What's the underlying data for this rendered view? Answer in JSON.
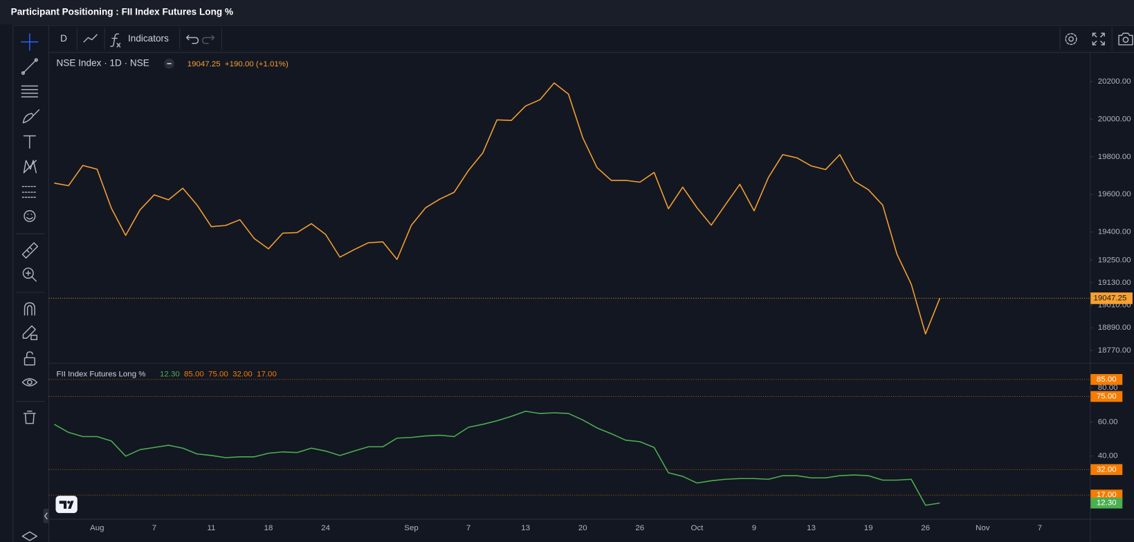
{
  "header": {
    "title": "Participant Positioning : FII Index Futures Long %"
  },
  "toolbar": {
    "interval": "D",
    "indicators": "Indicators"
  },
  "chart_data": [
    {
      "type": "line",
      "title": "NSE Index · 1D · NSE",
      "change": "+190.00 (+1.01%)",
      "categories": [
        null,
        null,
        null,
        "Aug",
        null,
        null,
        null,
        "7",
        null,
        null,
        null,
        "11",
        null,
        null,
        null,
        "18",
        null,
        null,
        null,
        "24",
        null,
        null,
        null,
        null,
        null,
        "Sep",
        null,
        null,
        null,
        "7",
        null,
        null,
        null,
        "13",
        null,
        null,
        null,
        "20",
        null,
        null,
        null,
        "26",
        null,
        null,
        null,
        "Oct",
        null,
        null,
        null,
        "9",
        null,
        null,
        null,
        "13",
        null,
        null,
        null,
        "19",
        null,
        null,
        null,
        "26",
        null,
        null,
        null,
        "Nov",
        null,
        null,
        null,
        "7",
        null,
        null,
        null
      ],
      "series": [
        {
          "color": "#f7a130",
          "values": [
            19659.9,
            19646.05,
            19753.8,
            19733.55,
            19526.55,
            19381.65,
            19517.0,
            19597.3,
            19570.85,
            19632.55,
            19543.1,
            19428.3,
            19434.55,
            19465.0,
            19365.25,
            19310.15,
            19393.6,
            19396.45,
            19444.0,
            19386.7,
            19265.8,
            19306.05,
            19342.65,
            19347.45,
            19253.8,
            19435.3,
            19528.8,
            19574.9,
            19611.05,
            19727.05,
            19819.95,
            19996.35,
            19993.2,
            20070.0,
            20103.1,
            20192.35,
            20133.3,
            19901.4,
            19742.35,
            19674.25,
            19674.55,
            19664.7,
            19716.45,
            19523.55,
            19638.3,
            19528.75,
            19436.1,
            19545.75,
            19653.5,
            19512.35,
            19689.85,
            19811.35,
            19794.0,
            19751.05,
            19731.75,
            19811.5,
            19671.1,
            19624.7,
            19542.65,
            19281.75,
            19122.15,
            18857.25,
            19047.25,
            null,
            null,
            null,
            null,
            null,
            null,
            null,
            null,
            null,
            null
          ]
        }
      ],
      "ylim": [
        18704,
        20357
      ],
      "yticks": [
        {
          "value": 20200,
          "label": "20200.00"
        },
        {
          "value": 20000,
          "label": "20000.00"
        },
        {
          "value": 19800,
          "label": "19800.00"
        },
        {
          "value": 19600,
          "label": "19600.00"
        },
        {
          "value": 19400,
          "label": "19400.00"
        },
        {
          "value": 19250,
          "label": "19250.00"
        },
        {
          "value": 19130,
          "label": "19130.00"
        },
        {
          "value": 19010,
          "label": "19010.00"
        },
        {
          "value": 18890,
          "label": "18890.00"
        },
        {
          "value": 18770,
          "label": "18770.00"
        }
      ],
      "grid": false
    },
    {
      "type": "line",
      "title": "FII Index Futures Long %",
      "series": [
        {
          "color": "#4caf50",
          "values": [
            58.6,
            53.9,
            51.4,
            51.4,
            48.8,
            39.9,
            43.7,
            45.0,
            46.3,
            44.6,
            41.2,
            40.3,
            39.0,
            39.5,
            39.5,
            41.6,
            42.4,
            42.0,
            44.6,
            42.9,
            40.3,
            42.9,
            45.4,
            45.4,
            50.5,
            50.9,
            51.8,
            52.2,
            51.4,
            56.9,
            58.6,
            60.7,
            63.3,
            66.3,
            65.0,
            65.4,
            65.0,
            61.2,
            56.5,
            53.1,
            49.3,
            48.4,
            45.0,
            30.1,
            28.0,
            24.1,
            25.4,
            26.3,
            26.7,
            26.7,
            26.3,
            28.4,
            28.4,
            27.1,
            27.1,
            28.4,
            28.8,
            28.4,
            25.8,
            25.8,
            26.3,
            11.0,
            12.3,
            null,
            null,
            null,
            null,
            null,
            null,
            null,
            null,
            null,
            null
          ]
        }
      ],
      "last_label": "12.30",
      "levels": [
        {
          "value": 85,
          "label": "85.00"
        },
        {
          "value": 75,
          "label": "75.00"
        },
        {
          "value": 32,
          "label": "32.00"
        },
        {
          "value": 17,
          "label": "17.00"
        }
      ],
      "levels_color": "#f57c00",
      "ylim": [
        3,
        94.4
      ],
      "yticks": [
        {
          "value": 80,
          "label": "80.00"
        },
        {
          "value": 60,
          "label": "60.00"
        },
        {
          "value": 40,
          "label": "40.00"
        }
      ],
      "grid": false
    }
  ]
}
